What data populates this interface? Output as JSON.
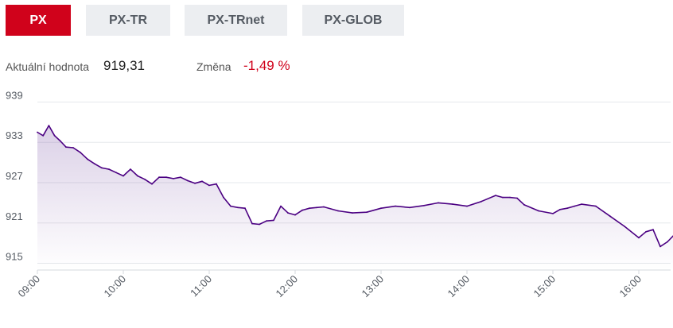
{
  "tabs": [
    {
      "label": "PX",
      "active": true
    },
    {
      "label": "PX-TR",
      "active": false
    },
    {
      "label": "PX-TRnet",
      "active": false
    },
    {
      "label": "PX-GLOB",
      "active": false
    }
  ],
  "info": {
    "current_label": "Aktuální hodnota",
    "current_value": "919,31",
    "change_label": "Změna",
    "change_value": "-1,49 %"
  },
  "colors": {
    "accent": "#d0021b",
    "line": "#4b0082",
    "negative": "#d0021b"
  },
  "chart_data": {
    "type": "area",
    "title": "",
    "xlabel": "",
    "ylabel": "",
    "ylim": [
      914,
      940
    ],
    "xlim": [
      "09:00",
      "16:25"
    ],
    "y_ticks": [
      "939",
      "933",
      "927",
      "921",
      "915"
    ],
    "x_ticks": [
      "09:00",
      "10:00",
      "11:00",
      "12:00",
      "13:00",
      "14:00",
      "15:00",
      "16:00"
    ],
    "grid": true,
    "series": [
      {
        "x": [
          "09:00",
          "09:04",
          "09:08",
          "09:12",
          "09:16",
          "09:20",
          "09:25",
          "09:30",
          "09:35",
          "09:40",
          "09:45",
          "09:50",
          "09:55",
          "10:00",
          "10:05",
          "10:10",
          "10:15",
          "10:20",
          "10:25",
          "10:30",
          "10:35",
          "10:40",
          "10:45",
          "10:50",
          "10:55",
          "11:00",
          "11:05",
          "11:10",
          "11:15",
          "11:20",
          "11:25",
          "11:30",
          "11:35",
          "11:40",
          "11:45",
          "11:50",
          "11:55",
          "12:00",
          "12:05",
          "12:10",
          "12:15",
          "12:20",
          "12:30",
          "12:40",
          "12:50",
          "13:00",
          "13:10",
          "13:20",
          "13:30",
          "13:40",
          "13:50",
          "14:00",
          "14:10",
          "14:20",
          "14:25",
          "14:30",
          "14:35",
          "14:40",
          "14:50",
          "15:00",
          "15:05",
          "15:10",
          "15:15",
          "15:20",
          "15:30",
          "15:40",
          "15:50",
          "16:00",
          "16:05",
          "16:10",
          "16:15",
          "16:20",
          "16:25"
        ],
        "y": [
          934.5,
          934.0,
          935.5,
          934.0,
          933.2,
          932.3,
          932.2,
          931.5,
          930.5,
          929.8,
          929.2,
          929.0,
          928.5,
          928.0,
          929.0,
          928.0,
          927.5,
          926.8,
          927.8,
          927.8,
          927.6,
          927.8,
          927.3,
          926.9,
          927.2,
          926.6,
          926.8,
          924.8,
          923.5,
          923.3,
          923.2,
          920.9,
          920.8,
          921.3,
          921.4,
          923.5,
          922.5,
          922.2,
          922.9,
          923.2,
          923.3,
          923.4,
          922.8,
          922.5,
          922.6,
          923.2,
          923.5,
          923.3,
          923.6,
          924.0,
          923.8,
          923.5,
          924.2,
          925.1,
          924.8,
          924.8,
          924.7,
          923.7,
          922.8,
          922.4,
          923.0,
          923.2,
          923.5,
          923.8,
          923.5,
          922.0,
          920.5,
          918.8,
          919.7,
          920.0,
          917.5,
          918.2,
          919.3
        ]
      }
    ]
  }
}
